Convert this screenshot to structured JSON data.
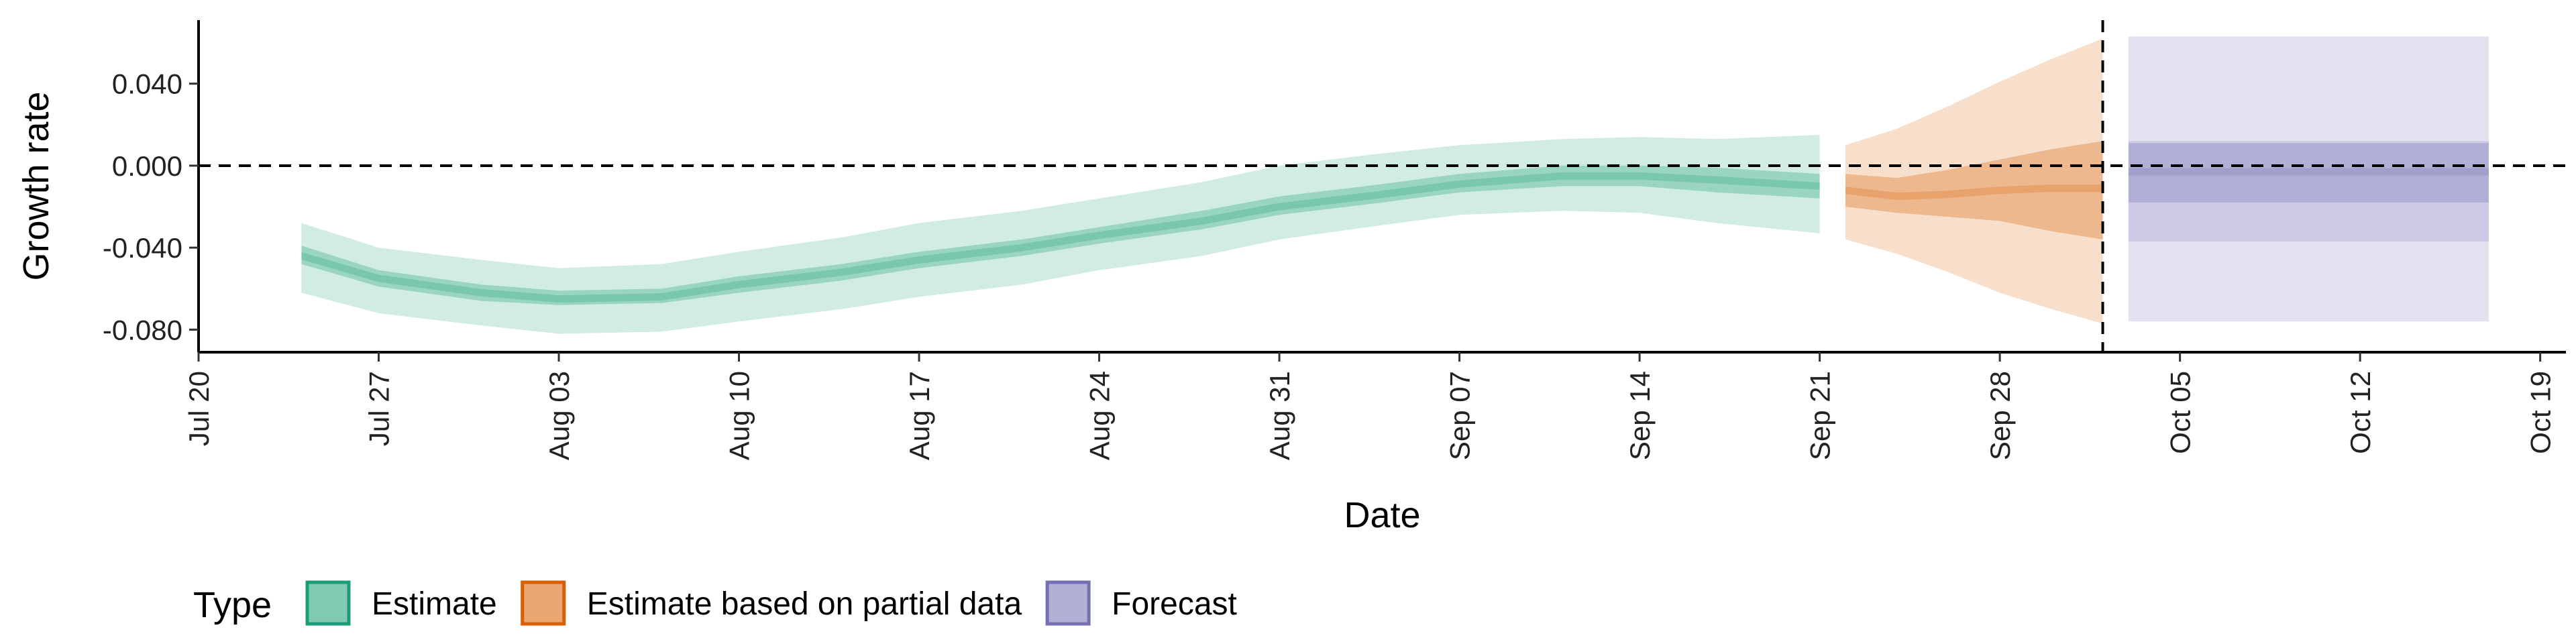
{
  "chart_data": {
    "type": "area",
    "xlabel": "Date",
    "ylabel": "Growth rate",
    "x_ticks": [
      "Jul 20",
      "Jul 27",
      "Aug 03",
      "Aug 10",
      "Aug 17",
      "Aug 24",
      "Aug 31",
      "Sep 07",
      "Sep 14",
      "Sep 21",
      "Sep 28",
      "Oct 05",
      "Oct 12",
      "Oct 19"
    ],
    "x_tick_dates": [
      "2020-07-20",
      "2020-07-27",
      "2020-08-03",
      "2020-08-10",
      "2020-08-17",
      "2020-08-24",
      "2020-08-31",
      "2020-09-07",
      "2020-09-14",
      "2020-09-21",
      "2020-09-28",
      "2020-10-05",
      "2020-10-12",
      "2020-10-19"
    ],
    "y_ticks": [
      "0.040",
      "0.000",
      "-0.040",
      "-0.080"
    ],
    "y_tick_values": [
      0.04,
      0.0,
      -0.04,
      -0.08
    ],
    "xlim": [
      "2020-07-20",
      "2020-10-20"
    ],
    "ylim": [
      -0.091,
      0.071
    ],
    "reference_lines": {
      "horizontal_y": 0.0,
      "vertical_date": "2020-10-02"
    },
    "legend": {
      "title": "Type",
      "position": "bottom-left",
      "items": [
        {
          "label": "Estimate",
          "color": "#1b9e77"
        },
        {
          "label": "Estimate based on partial data",
          "color": "#d95f02"
        },
        {
          "label": "Forecast",
          "color": "#7570b3"
        }
      ]
    },
    "series": [
      {
        "type_label": "Estimate",
        "color": "#1b9e77",
        "x": [
          "2020-07-24",
          "2020-07-27",
          "2020-07-31",
          "2020-08-03",
          "2020-08-07",
          "2020-08-10",
          "2020-08-14",
          "2020-08-17",
          "2020-08-21",
          "2020-08-24",
          "2020-08-28",
          "2020-08-31",
          "2020-09-04",
          "2020-09-07",
          "2020-09-11",
          "2020-09-14",
          "2020-09-17",
          "2020-09-21"
        ],
        "median": [
          -0.044,
          -0.055,
          -0.062,
          -0.065,
          -0.064,
          -0.058,
          -0.052,
          -0.046,
          -0.04,
          -0.034,
          -0.027,
          -0.02,
          -0.014,
          -0.009,
          -0.005,
          -0.005,
          -0.007,
          -0.01
        ],
        "lower_50": [
          -0.048,
          -0.059,
          -0.066,
          -0.068,
          -0.067,
          -0.062,
          -0.056,
          -0.05,
          -0.044,
          -0.038,
          -0.031,
          -0.024,
          -0.018,
          -0.013,
          -0.01,
          -0.01,
          -0.013,
          -0.016
        ],
        "upper_50": [
          -0.039,
          -0.051,
          -0.058,
          -0.061,
          -0.06,
          -0.054,
          -0.048,
          -0.042,
          -0.036,
          -0.03,
          -0.022,
          -0.015,
          -0.009,
          -0.004,
          0.0,
          0.0,
          -0.001,
          -0.004
        ],
        "lower_90": [
          -0.062,
          -0.072,
          -0.078,
          -0.082,
          -0.081,
          -0.076,
          -0.07,
          -0.064,
          -0.058,
          -0.051,
          -0.044,
          -0.036,
          -0.029,
          -0.024,
          -0.022,
          -0.023,
          -0.028,
          -0.033
        ],
        "upper_90": [
          -0.028,
          -0.04,
          -0.046,
          -0.05,
          -0.048,
          -0.042,
          -0.035,
          -0.028,
          -0.022,
          -0.016,
          -0.008,
          0.0,
          0.006,
          0.01,
          0.013,
          0.014,
          0.013,
          0.015
        ]
      },
      {
        "type_label": "Estimate based on partial data",
        "color": "#d95f02",
        "x": [
          "2020-09-22",
          "2020-09-24",
          "2020-09-26",
          "2020-09-28",
          "2020-09-30",
          "2020-10-02"
        ],
        "median": [
          -0.012,
          -0.015,
          -0.014,
          -0.012,
          -0.011,
          -0.011
        ],
        "lower_50": [
          -0.02,
          -0.023,
          -0.025,
          -0.027,
          -0.032,
          -0.036
        ],
        "upper_50": [
          -0.004,
          -0.006,
          -0.002,
          0.003,
          0.008,
          0.012
        ],
        "lower_90": [
          -0.036,
          -0.043,
          -0.052,
          -0.062,
          -0.07,
          -0.077
        ],
        "upper_90": [
          0.01,
          0.018,
          0.029,
          0.041,
          0.052,
          0.062
        ]
      },
      {
        "type_label": "Forecast",
        "color": "#7570b3",
        "x": [
          "2020-10-03",
          "2020-10-17"
        ],
        "median": [
          -0.003,
          -0.003
        ],
        "lower_50": [
          -0.018,
          -0.018
        ],
        "upper_50": [
          0.011,
          0.011
        ],
        "lower_90": [
          -0.037,
          -0.037
        ],
        "upper_90": [
          0.012,
          0.012
        ],
        "lower_outer": [
          -0.076,
          -0.076
        ],
        "upper_outer": [
          0.063,
          0.063
        ]
      }
    ]
  }
}
